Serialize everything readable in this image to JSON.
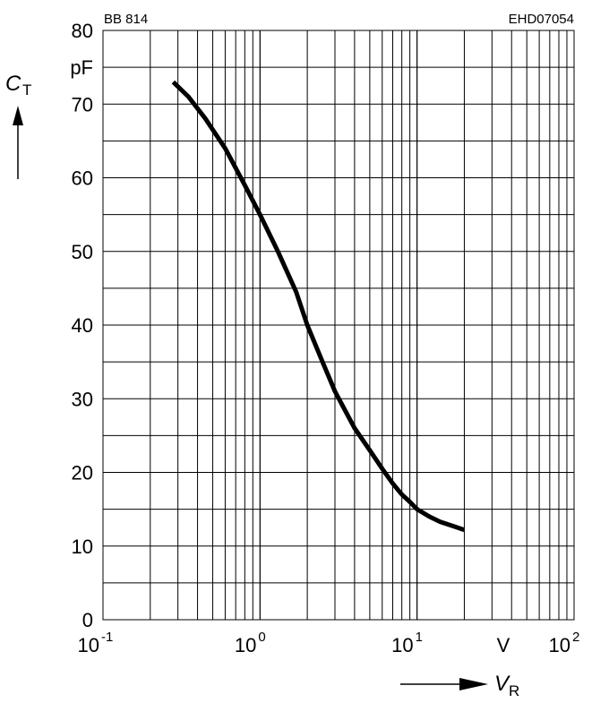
{
  "chart_data": {
    "type": "line",
    "part_label": "BB 814",
    "code": "EHD07054",
    "x_scale": "log",
    "xlim": [
      0.1,
      100
    ],
    "ylim": [
      0,
      80
    ],
    "grid": true,
    "y_axis": {
      "symbol": "C",
      "subscript": "T",
      "unit": "pF",
      "ticks": [
        0,
        10,
        20,
        30,
        40,
        50,
        60,
        70,
        80
      ]
    },
    "x_axis": {
      "symbol": "V",
      "subscript": "R",
      "unit": "V",
      "ticks": [
        {
          "value": 0.1,
          "base": "10",
          "exp": "-1"
        },
        {
          "value": 1,
          "base": "10",
          "exp": "0"
        },
        {
          "value": 10,
          "base": "10",
          "exp": "1"
        },
        {
          "value": 100,
          "base": "10",
          "exp": "2"
        }
      ]
    },
    "series": [
      {
        "x": [
          0.28,
          0.35,
          0.45,
          0.6,
          0.8,
          1.0,
          1.3,
          1.7,
          2.0,
          2.5,
          3.0,
          4.0,
          5.0,
          6.0,
          7.0,
          8.0,
          9.0,
          10.0,
          12.0,
          14.0,
          17.0,
          20.0
        ],
        "y": [
          73,
          71,
          68,
          64,
          59,
          55,
          50,
          44.5,
          40,
          35,
          31,
          26,
          23,
          20.5,
          18.5,
          17,
          16,
          15,
          14,
          13.3,
          12.7,
          12.2
        ]
      }
    ]
  }
}
